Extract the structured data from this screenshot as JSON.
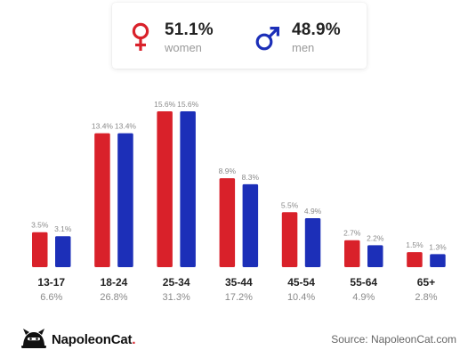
{
  "colors": {
    "women": "#d9212a",
    "men": "#1c2fb8",
    "bar_value_text": "#8a8a8a",
    "category_text": "#222222",
    "total_text": "#8a8a8a",
    "baseline": "#e6e6e6"
  },
  "legend": {
    "women": {
      "icon": "female-symbol-icon",
      "percent": "51.1%",
      "label": "women"
    },
    "men": {
      "icon": "male-symbol-icon",
      "percent": "48.9%",
      "label": "men"
    }
  },
  "chart_data": {
    "type": "bar",
    "categories": [
      "13-17",
      "18-24",
      "25-34",
      "35-44",
      "45-54",
      "55-64",
      "65+"
    ],
    "category_totals": [
      "6.6%",
      "26.8%",
      "31.3%",
      "17.2%",
      "10.4%",
      "4.9%",
      "2.8%"
    ],
    "series": [
      {
        "name": "women",
        "values": [
          3.5,
          13.4,
          15.6,
          8.9,
          5.5,
          2.7,
          1.5
        ],
        "labels": [
          "3.5%",
          "13.4%",
          "15.6%",
          "8.9%",
          "5.5%",
          "2.7%",
          "1.5%"
        ]
      },
      {
        "name": "men",
        "values": [
          3.1,
          13.4,
          15.6,
          8.3,
          4.9,
          2.2,
          1.3
        ],
        "labels": [
          "3.1%",
          "13.4%",
          "15.6%",
          "8.3%",
          "4.9%",
          "2.2%",
          "1.3%"
        ]
      }
    ],
    "ylim": [
      0,
      15.6
    ],
    "grid": false
  },
  "footer": {
    "brand_name": "NapoleonCat",
    "brand_dot": ".",
    "logo_icon": "napoleoncat-logo-icon",
    "source": "Source: NapoleonCat.com"
  }
}
